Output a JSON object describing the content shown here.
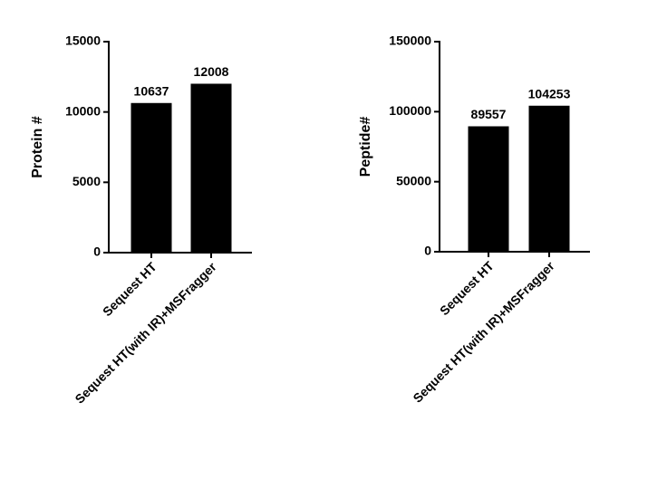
{
  "chart_data": [
    {
      "type": "bar",
      "y_label": "Protein #",
      "categories": [
        "Sequest HT",
        "Sequest HT(with IR)+MSFragger"
      ],
      "values": [
        10637,
        12008
      ],
      "color": "#000000",
      "ylim": [
        0,
        15000
      ],
      "yticks": [
        0,
        5000,
        10000,
        15000
      ]
    },
    {
      "type": "bar",
      "y_label": "Peptide#",
      "categories": [
        "Sequest HT",
        "Sequest HT(with IR)+MSFragger"
      ],
      "values": [
        89557,
        104253
      ],
      "color": "#000000",
      "ylim": [
        0,
        150000
      ],
      "yticks": [
        0,
        50000,
        100000,
        150000
      ]
    }
  ]
}
